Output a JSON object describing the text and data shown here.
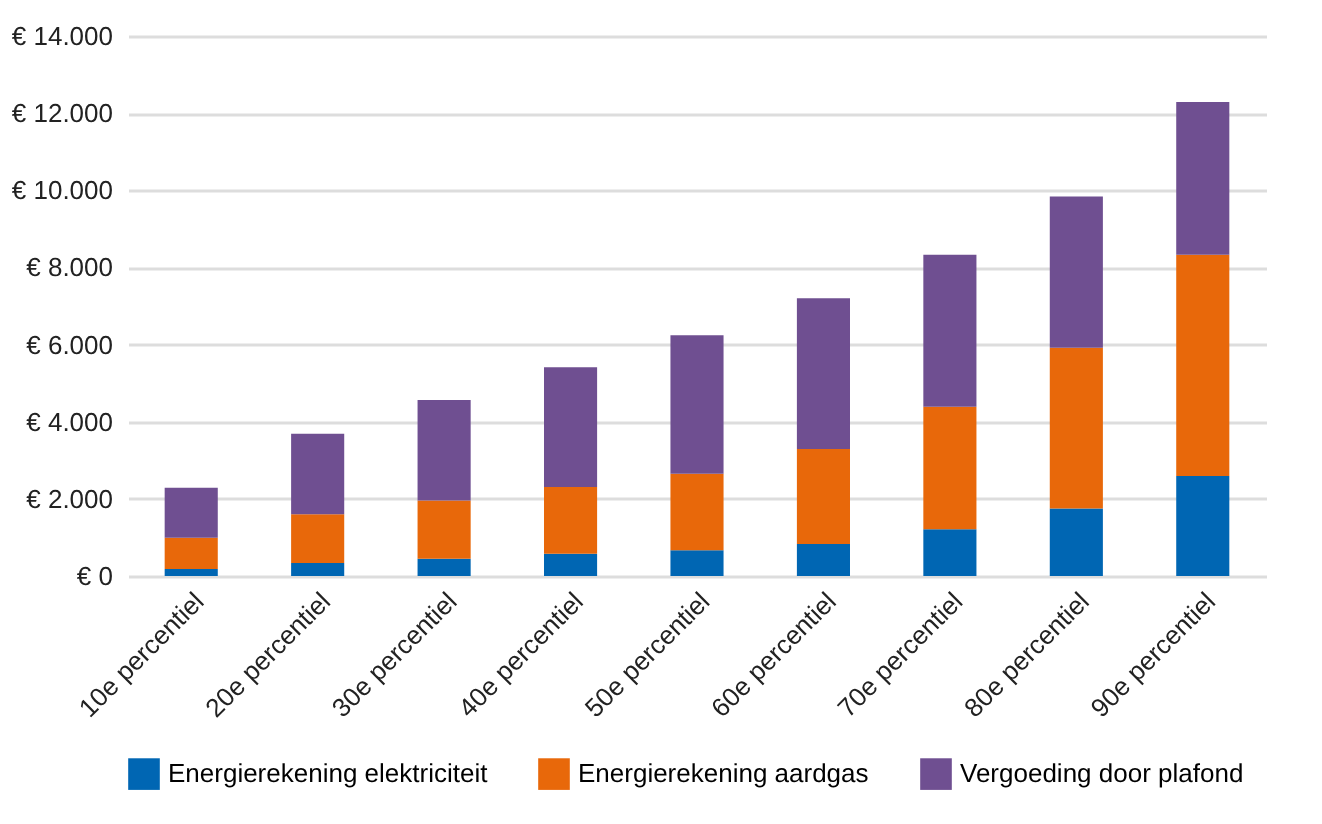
{
  "chart_data": {
    "type": "bar",
    "stacked": true,
    "categories": [
      "10e percentiel",
      "20e percentiel",
      "30e percentiel",
      "40e percentiel",
      "50e percentiel",
      "60e percentiel",
      "70e percentiel",
      "80e percentiel",
      "90e percentiel"
    ],
    "series": [
      {
        "name": "Energierekening elektriciteit",
        "color": "#0066b3",
        "values": [
          180,
          340,
          450,
          580,
          670,
          830,
          1210,
          1750,
          2590
        ]
      },
      {
        "name": "Energierekening aardgas",
        "color": "#e8680a",
        "values": [
          810,
          1260,
          1510,
          1730,
          1980,
          2460,
          3180,
          4170,
          5740
        ]
      },
      {
        "name": "Vergoeding door plafond",
        "color": "#6f4f91",
        "values": [
          1300,
          2090,
          2600,
          3100,
          3590,
          3910,
          3940,
          3920,
          3960
        ]
      }
    ],
    "ylim": [
      0,
      14000
    ],
    "yticks": [
      {
        "value": 0,
        "label": "€ 0"
      },
      {
        "value": 2000,
        "label": "€ 2.000"
      },
      {
        "value": 4000,
        "label": "€ 4.000"
      },
      {
        "value": 6000,
        "label": "€ 6.000"
      },
      {
        "value": 8000,
        "label": "€ 8.000"
      },
      {
        "value": 10000,
        "label": "€ 10.000"
      },
      {
        "value": 12000,
        "label": "€ 12.000"
      },
      {
        "value": 14000,
        "label": "€ 14.000"
      }
    ],
    "grid": "y",
    "legend": "bottom"
  }
}
